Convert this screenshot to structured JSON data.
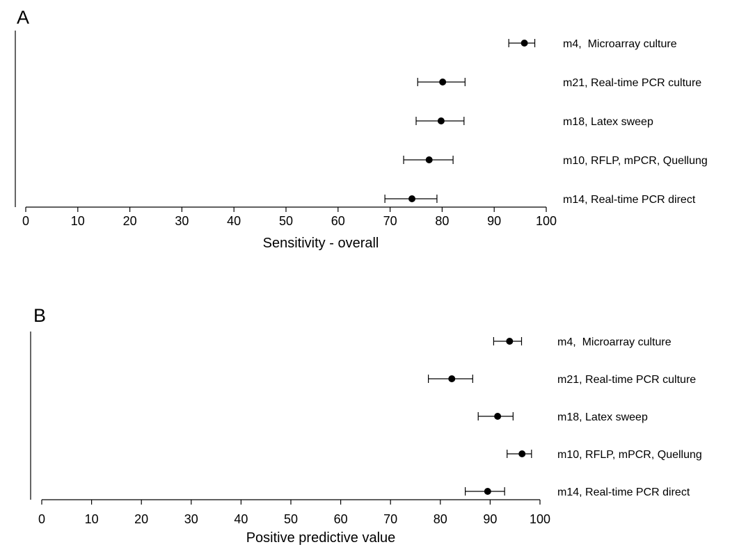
{
  "chart_data": [
    {
      "panel": "A",
      "type": "scatter",
      "xlabel": "Sensitivity - overall",
      "xlim": [
        0,
        100
      ],
      "xticks": [
        0,
        10,
        20,
        30,
        40,
        50,
        60,
        70,
        80,
        90,
        100
      ],
      "rows": [
        {
          "label": "m4,  Microarray culture",
          "estimate": 95.8,
          "ci": [
            92.8,
            97.8
          ]
        },
        {
          "label": "m21, Real-time PCR culture",
          "estimate": 80.1,
          "ci": [
            75.3,
            84.4
          ]
        },
        {
          "label": "m18, Latex sweep",
          "estimate": 79.8,
          "ci": [
            75.0,
            84.2
          ]
        },
        {
          "label": "m10, RFLP, mPCR, Quellung",
          "estimate": 77.5,
          "ci": [
            72.6,
            82.1
          ]
        },
        {
          "label": "m14, Real-time PCR direct",
          "estimate": 74.2,
          "ci": [
            69.0,
            79.0
          ]
        }
      ]
    },
    {
      "panel": "B",
      "type": "scatter",
      "xlabel": "Positive predictive value",
      "xlim": [
        0,
        100
      ],
      "xticks": [
        0,
        10,
        20,
        30,
        40,
        50,
        60,
        70,
        80,
        90,
        100
      ],
      "rows": [
        {
          "label": "m4,  Microarray culture",
          "estimate": 93.9,
          "ci": [
            90.7,
            96.3
          ]
        },
        {
          "label": "m21, Real-time PCR culture",
          "estimate": 82.3,
          "ci": [
            77.6,
            86.5
          ]
        },
        {
          "label": "m18, Latex sweep",
          "estimate": 91.5,
          "ci": [
            87.6,
            94.6
          ]
        },
        {
          "label": "m10, RFLP, mPCR, Quellung",
          "estimate": 96.4,
          "ci": [
            93.4,
            98.3
          ]
        },
        {
          "label": "m14, Real-time PCR direct",
          "estimate": 89.5,
          "ci": [
            85.0,
            92.9
          ]
        }
      ]
    }
  ]
}
